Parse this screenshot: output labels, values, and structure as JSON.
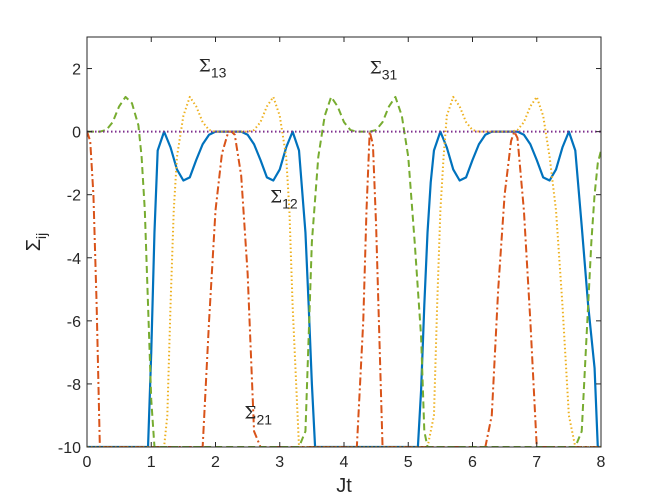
{
  "chart_data": {
    "type": "line",
    "title": "",
    "xlabel": "Jt",
    "ylabel": "Σ",
    "ylabel_sub": "ij",
    "xlim": [
      0,
      8
    ],
    "ylim": [
      -10,
      3
    ],
    "xticks": [
      0,
      1,
      2,
      3,
      4,
      5,
      6,
      7,
      8
    ],
    "yticks": [
      -10,
      -8,
      -6,
      -4,
      -2,
      0,
      2
    ],
    "grid": false,
    "legend": "none",
    "annotations": [
      {
        "base": "Σ",
        "sub": "13",
        "x": 1.74,
        "y": 1.9
      },
      {
        "base": "Σ",
        "sub": "31",
        "x": 4.4,
        "y": 1.85
      },
      {
        "base": "Σ",
        "sub": "12",
        "x": 2.85,
        "y": -2.25
      },
      {
        "base": "Σ",
        "sub": "21",
        "x": 2.45,
        "y": -9.1
      }
    ],
    "series": [
      {
        "color": "#0072BD",
        "style": "solid",
        "x": [
          0.0,
          0.05,
          0.1,
          0.2,
          0.3,
          0.5,
          0.7,
          0.85,
          0.95,
          1.0,
          1.05,
          1.1,
          1.2,
          1.3,
          1.4,
          1.5,
          1.6,
          1.7,
          1.8,
          1.9,
          2.0,
          2.1,
          2.2,
          2.3,
          2.4,
          2.5,
          2.6,
          2.7,
          2.8,
          2.9,
          3.0,
          3.1,
          3.2,
          3.3,
          3.4,
          3.45,
          3.5,
          3.55,
          3.6,
          3.65,
          3.7,
          3.8,
          4.0,
          4.2,
          4.4,
          4.6,
          4.8,
          5.0,
          5.1,
          5.15,
          5.2,
          5.25,
          5.3,
          5.35,
          5.4,
          5.5,
          5.6,
          5.7,
          5.8,
          5.9,
          6.0,
          6.1,
          6.2,
          6.3,
          6.4,
          6.5,
          6.6,
          6.7,
          6.8,
          6.9,
          7.0,
          7.1,
          7.2,
          7.3,
          7.4,
          7.5,
          7.6,
          7.7,
          7.8,
          7.9,
          7.95,
          8.0
        ],
        "y": [
          -10,
          -10,
          -10,
          -10,
          -10,
          -10,
          -10,
          -10,
          -10,
          -7.0,
          -3.2,
          -0.6,
          0.0,
          -0.5,
          -1.2,
          -1.55,
          -1.45,
          -0.9,
          -0.4,
          -0.1,
          0.0,
          0.0,
          0.0,
          0.0,
          0.0,
          -0.1,
          -0.4,
          -0.9,
          -1.45,
          -1.55,
          -1.2,
          -0.5,
          0.0,
          -0.6,
          -3.2,
          -5.5,
          -8.0,
          -10,
          -10,
          -10,
          -10,
          -10,
          -10,
          -10,
          -10,
          -10,
          -10,
          -10,
          -10,
          -10,
          -8.2,
          -5.5,
          -3.2,
          -1.6,
          -0.6,
          0.0,
          -0.5,
          -1.2,
          -1.55,
          -1.45,
          -0.9,
          -0.4,
          -0.1,
          0.0,
          0.0,
          0.0,
          0.0,
          0.0,
          -0.1,
          -0.4,
          -0.9,
          -1.45,
          -1.55,
          -1.2,
          -0.5,
          0.0,
          -0.6,
          -3.0,
          -5.5,
          -7.5,
          -10,
          -10
        ]
      },
      {
        "color": "#D95319",
        "style": "dashdot",
        "x": [
          0.0,
          0.05,
          0.1,
          0.15,
          0.2,
          0.3,
          0.5,
          1.0,
          1.5,
          1.8,
          1.9,
          2.0,
          2.1,
          2.2,
          2.25,
          2.3,
          2.4,
          2.5,
          2.6,
          2.7,
          3.0,
          3.5,
          4.0,
          4.2,
          4.3,
          4.35,
          4.4,
          4.45,
          4.5,
          4.55,
          4.6,
          4.7,
          5.0,
          5.5,
          6.0,
          6.2,
          6.3,
          6.4,
          6.5,
          6.6,
          6.65,
          6.7,
          6.8,
          6.9,
          7.0,
          7.1,
          7.5,
          8.0
        ],
        "y": [
          0.0,
          -0.3,
          -2.0,
          -5.5,
          -10,
          -10,
          -10,
          -10,
          -10,
          -10,
          -6.0,
          -2.5,
          -0.7,
          0.0,
          0.0,
          -0.1,
          -1.4,
          -4.5,
          -9.5,
          -10,
          -10,
          -10,
          -10,
          -10,
          -6.0,
          -2.5,
          0.0,
          -0.4,
          -3.0,
          -6.5,
          -10,
          -10,
          -10,
          -10,
          -10,
          -10,
          -9.0,
          -5.0,
          -2.0,
          -0.3,
          0.0,
          -0.2,
          -2.5,
          -6.0,
          -10,
          -10,
          -10,
          -10
        ]
      },
      {
        "color": "#EDB120",
        "style": "dotted",
        "x": [
          0.0,
          0.2,
          0.5,
          0.8,
          1.0,
          1.2,
          1.25,
          1.3,
          1.35,
          1.4,
          1.5,
          1.6,
          1.7,
          1.8,
          1.9,
          2.0,
          2.1,
          2.2,
          2.3,
          2.4,
          2.5,
          2.6,
          2.7,
          2.8,
          2.9,
          3.0,
          3.1,
          3.15,
          3.2,
          3.3,
          3.4,
          3.5,
          4.0,
          4.5,
          5.0,
          5.2,
          5.3,
          5.4,
          5.45,
          5.5,
          5.55,
          5.6,
          5.7,
          5.8,
          5.9,
          6.0,
          6.1,
          6.2,
          6.3,
          6.4,
          6.5,
          6.6,
          6.7,
          6.8,
          6.9,
          7.0,
          7.1,
          7.2,
          7.3,
          7.4,
          7.5,
          7.6,
          7.7,
          7.8,
          7.9,
          8.0
        ],
        "y": [
          -10,
          -10,
          -10,
          -10,
          -10,
          -10,
          -9.0,
          -5.5,
          -2.5,
          -0.8,
          0.5,
          1.1,
          0.8,
          0.3,
          0.05,
          0.0,
          0.0,
          0.0,
          0.0,
          0.0,
          0.0,
          0.05,
          0.3,
          0.8,
          1.1,
          0.5,
          -0.8,
          -2.5,
          -5.5,
          -10,
          -10,
          -10,
          -10,
          -10,
          -10,
          -10,
          -10,
          -9.0,
          -5.5,
          -2.5,
          -0.8,
          0.5,
          1.1,
          0.8,
          0.3,
          0.05,
          0.0,
          0.0,
          0.0,
          0.0,
          0.0,
          0.0,
          0.05,
          0.3,
          0.8,
          1.1,
          0.5,
          -0.8,
          -2.5,
          -5.5,
          -9.0,
          -10,
          -10,
          -10,
          -10,
          -10
        ]
      },
      {
        "color": "#77AC30",
        "style": "dashed",
        "x": [
          0.0,
          0.1,
          0.2,
          0.3,
          0.4,
          0.5,
          0.6,
          0.7,
          0.8,
          0.85,
          0.9,
          0.95,
          1.0,
          1.05,
          1.1,
          1.2,
          1.5,
          2.0,
          2.5,
          3.0,
          3.2,
          3.3,
          3.4,
          3.45,
          3.5,
          3.6,
          3.7,
          3.8,
          3.9,
          4.0,
          4.1,
          4.2,
          4.3,
          4.4,
          4.5,
          4.6,
          4.7,
          4.8,
          4.9,
          5.0,
          5.1,
          5.2,
          5.25,
          5.3,
          5.35,
          5.4,
          5.5,
          6.0,
          6.5,
          7.0,
          7.5,
          7.6,
          7.7,
          7.75,
          7.8,
          7.85,
          7.9,
          7.95,
          8.0
        ],
        "y": [
          0.0,
          0.0,
          0.0,
          0.05,
          0.3,
          0.8,
          1.1,
          0.9,
          0.2,
          -0.8,
          -2.5,
          -5.5,
          -8.5,
          -10,
          -10,
          -10,
          -10,
          -10,
          -10,
          -10,
          -10,
          -10,
          -9.5,
          -6.5,
          -3.5,
          -0.8,
          0.5,
          1.1,
          0.8,
          0.3,
          0.05,
          0.0,
          0.0,
          0.0,
          0.05,
          0.3,
          0.8,
          1.1,
          0.5,
          -0.8,
          -3.5,
          -6.5,
          -9.5,
          -10,
          -10,
          -10,
          -10,
          -10,
          -10,
          -10,
          -10,
          -10,
          -9.5,
          -7.5,
          -5.5,
          -3.5,
          -2.0,
          -1.0,
          -0.6
        ]
      },
      {
        "color": "#7E2F8E",
        "style": "dotted",
        "x": [
          0,
          8
        ],
        "y": [
          0,
          0
        ]
      }
    ]
  }
}
